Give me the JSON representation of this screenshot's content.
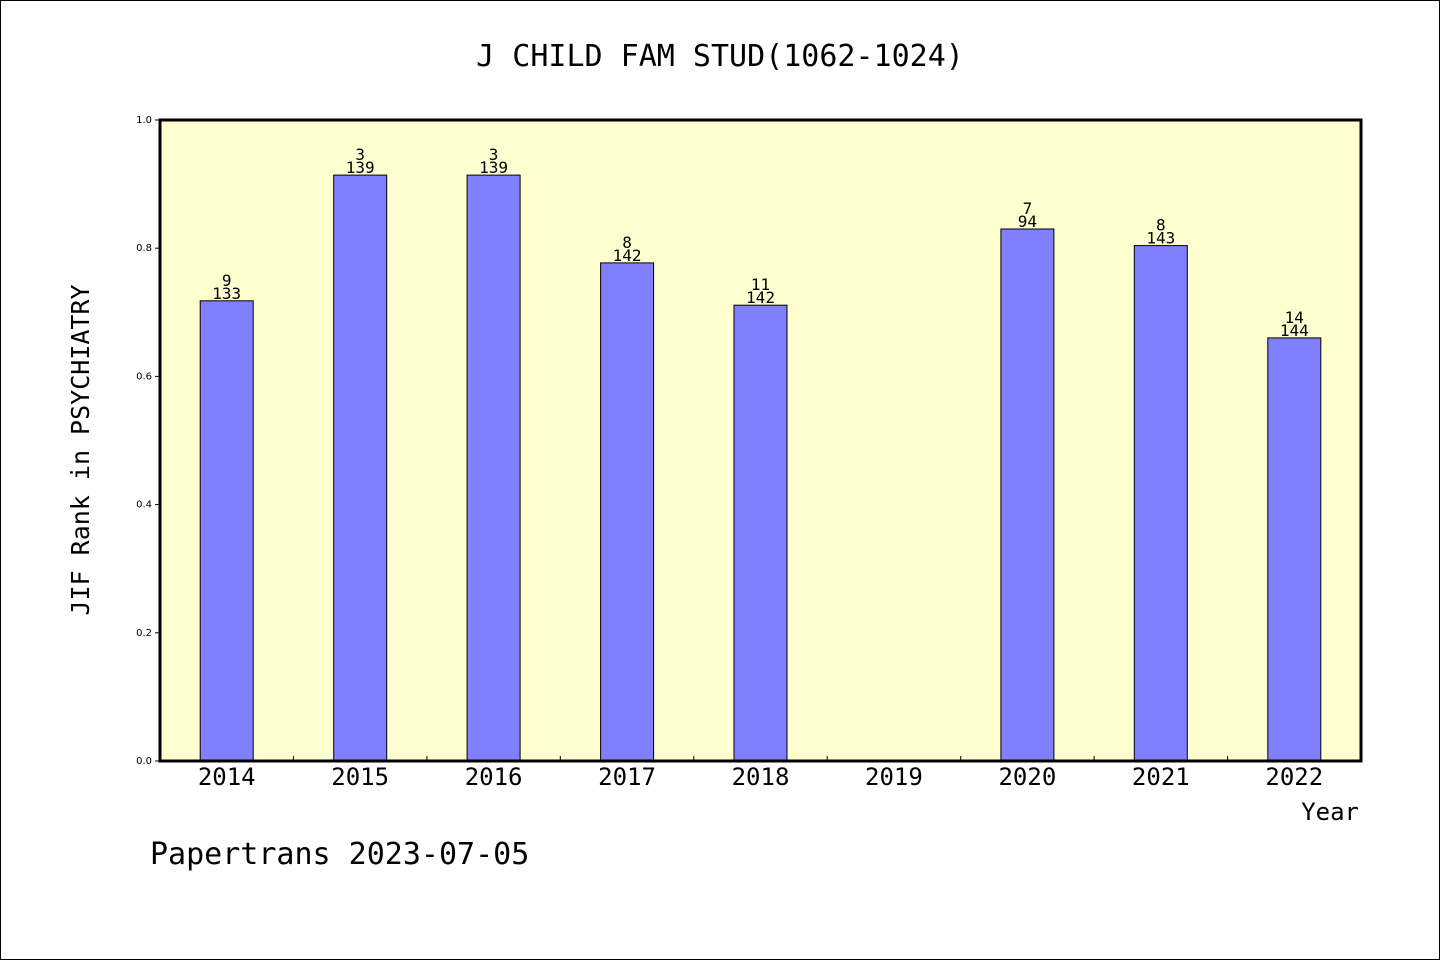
{
  "chart_data": {
    "type": "bar",
    "title": "J CHILD FAM STUD(1062-1024)",
    "xlabel": "Year",
    "ylabel": "JIF Rank in PSYCHIATRY",
    "ylim": [
      0,
      1.0
    ],
    "yticks": [
      "0.0",
      "0.2",
      "0.4",
      "0.6",
      "0.8",
      "1.0"
    ],
    "categories": [
      "2014",
      "2015",
      "2016",
      "2017",
      "2018",
      "2019",
      "2020",
      "2021",
      "2022"
    ],
    "values": [
      0.718,
      0.914,
      0.914,
      0.777,
      0.711,
      null,
      0.83,
      0.804,
      0.66
    ],
    "labels_top": [
      "9",
      "3",
      "3",
      "8",
      "11",
      "",
      "7",
      "8",
      "14"
    ],
    "labels_bottom": [
      "133",
      "139",
      "139",
      "142",
      "142",
      "",
      "94",
      "143",
      "144"
    ],
    "bar_color": "#8080ff",
    "background_color": "#ffffd0",
    "grid": false
  },
  "footer": "Papertrans 2023-07-05"
}
